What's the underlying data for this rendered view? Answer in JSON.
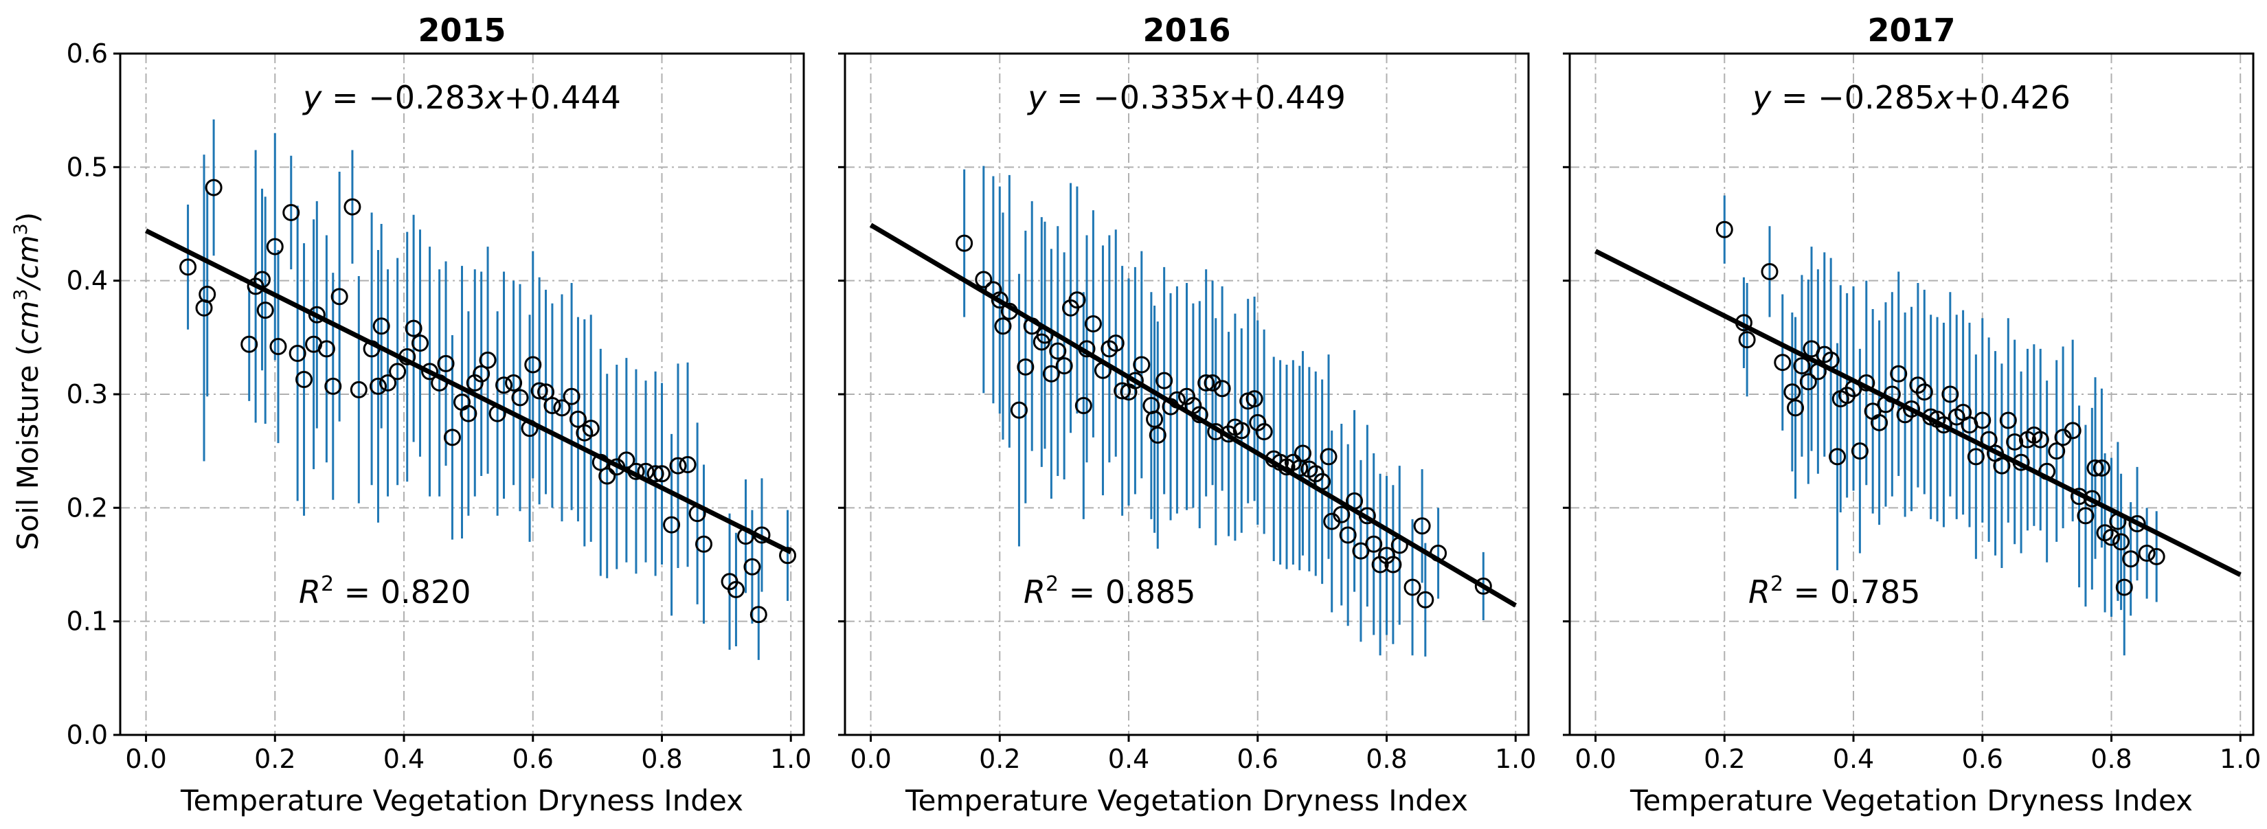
{
  "figure": {
    "ylabel": "Soil Moisture",
    "ylabel_unit_prefix": "(",
    "ylabel_unit_cm": "cm",
    "ylabel_unit_exp": "3",
    "ylabel_unit_slash": "/",
    "ylabel_unit_suffix": ")"
  },
  "colors": {
    "errorbar": "#1f77b4",
    "marker_edge": "#000000",
    "fit_line": "#000000",
    "grid": "#b0b0b0",
    "axes": "#000000"
  },
  "chart_data": [
    {
      "type": "scatter",
      "title": "2015",
      "xlabel": "Temperature Vegetation Dryness Index",
      "xlim": [
        -0.04,
        1.02
      ],
      "ylim": [
        0.0,
        0.6
      ],
      "xticks": [
        "0.0",
        "0.2",
        "0.4",
        "0.6",
        "0.8",
        "1.0"
      ],
      "yticks": [
        "0.0",
        "0.1",
        "0.2",
        "0.3",
        "0.4",
        "0.5",
        "0.6"
      ],
      "show_yticks": true,
      "grid": true,
      "equation": {
        "lhs": "y",
        "eq": " = −",
        "slope": "0.283",
        "var": "x",
        "intercept": "+0.444"
      },
      "r2": {
        "r": "R",
        "exp": "2",
        "eq": " = 0.820"
      },
      "fit": {
        "slope": -0.283,
        "intercept": 0.444,
        "x_range": [
          0.0,
          1.0
        ]
      },
      "points": [
        [
          0.065,
          0.412,
          0.055
        ],
        [
          0.09,
          0.376,
          0.135
        ],
        [
          0.095,
          0.388,
          0.09
        ],
        [
          0.105,
          0.482,
          0.06
        ],
        [
          0.16,
          0.344,
          0.05
        ],
        [
          0.17,
          0.395,
          0.12
        ],
        [
          0.18,
          0.401,
          0.08
        ],
        [
          0.185,
          0.374,
          0.1
        ],
        [
          0.2,
          0.43,
          0.1
        ],
        [
          0.205,
          0.342,
          0.085
        ],
        [
          0.225,
          0.46,
          0.05
        ],
        [
          0.235,
          0.336,
          0.13
        ],
        [
          0.245,
          0.313,
          0.12
        ],
        [
          0.26,
          0.344,
          0.11
        ],
        [
          0.265,
          0.37,
          0.1
        ],
        [
          0.28,
          0.34,
          0.1
        ],
        [
          0.29,
          0.307,
          0.1
        ],
        [
          0.3,
          0.386,
          0.11
        ],
        [
          0.32,
          0.465,
          0.05
        ],
        [
          0.33,
          0.304,
          0.1
        ],
        [
          0.35,
          0.34,
          0.12
        ],
        [
          0.36,
          0.307,
          0.12
        ],
        [
          0.365,
          0.36,
          0.09
        ],
        [
          0.375,
          0.31,
          0.1
        ],
        [
          0.39,
          0.32,
          0.1
        ],
        [
          0.405,
          0.333,
          0.11
        ],
        [
          0.415,
          0.358,
          0.1
        ],
        [
          0.425,
          0.345,
          0.1
        ],
        [
          0.44,
          0.32,
          0.11
        ],
        [
          0.455,
          0.31,
          0.1
        ],
        [
          0.465,
          0.327,
          0.09
        ],
        [
          0.475,
          0.262,
          0.09
        ],
        [
          0.49,
          0.293,
          0.12
        ],
        [
          0.5,
          0.283,
          0.09
        ],
        [
          0.51,
          0.31,
          0.1
        ],
        [
          0.52,
          0.318,
          0.09
        ],
        [
          0.53,
          0.33,
          0.1
        ],
        [
          0.545,
          0.283,
          0.09
        ],
        [
          0.555,
          0.308,
          0.1
        ],
        [
          0.57,
          0.31,
          0.09
        ],
        [
          0.58,
          0.297,
          0.1
        ],
        [
          0.595,
          0.27,
          0.1
        ],
        [
          0.6,
          0.326,
          0.1
        ],
        [
          0.61,
          0.303,
          0.1
        ],
        [
          0.62,
          0.302,
          0.09
        ],
        [
          0.63,
          0.29,
          0.09
        ],
        [
          0.645,
          0.288,
          0.1
        ],
        [
          0.66,
          0.298,
          0.1
        ],
        [
          0.67,
          0.278,
          0.09
        ],
        [
          0.68,
          0.266,
          0.1
        ],
        [
          0.69,
          0.27,
          0.1
        ],
        [
          0.705,
          0.24,
          0.1
        ],
        [
          0.715,
          0.228,
          0.09
        ],
        [
          0.73,
          0.236,
          0.09
        ],
        [
          0.745,
          0.242,
          0.09
        ],
        [
          0.76,
          0.232,
          0.09
        ],
        [
          0.775,
          0.232,
          0.08
        ],
        [
          0.79,
          0.23,
          0.09
        ],
        [
          0.8,
          0.23,
          0.08
        ],
        [
          0.815,
          0.185,
          0.08
        ],
        [
          0.825,
          0.237,
          0.09
        ],
        [
          0.84,
          0.238,
          0.09
        ],
        [
          0.855,
          0.195,
          0.08
        ],
        [
          0.865,
          0.168,
          0.07
        ],
        [
          0.905,
          0.135,
          0.06
        ],
        [
          0.915,
          0.128,
          0.05
        ],
        [
          0.93,
          0.175,
          0.05
        ],
        [
          0.94,
          0.148,
          0.05
        ],
        [
          0.95,
          0.106,
          0.04
        ],
        [
          0.955,
          0.176,
          0.05
        ],
        [
          0.995,
          0.158,
          0.04
        ]
      ]
    },
    {
      "type": "scatter",
      "title": "2016",
      "xlabel": "Temperature Vegetation Dryness Index",
      "xlim": [
        -0.04,
        1.02
      ],
      "ylim": [
        0.0,
        0.6
      ],
      "xticks": [
        "0.0",
        "0.2",
        "0.4",
        "0.6",
        "0.8",
        "1.0"
      ],
      "yticks": [
        "0.0",
        "0.1",
        "0.2",
        "0.3",
        "0.4",
        "0.5",
        "0.6"
      ],
      "show_yticks": false,
      "grid": true,
      "equation": {
        "lhs": "y",
        "eq": " = −",
        "slope": "0.335",
        "var": "x",
        "intercept": "+0.449"
      },
      "r2": {
        "r": "R",
        "exp": "2",
        "eq": " = 0.885"
      },
      "fit": {
        "slope": -0.335,
        "intercept": 0.449,
        "x_range": [
          0.0,
          1.0
        ]
      },
      "points": [
        [
          0.145,
          0.433,
          0.065
        ],
        [
          0.175,
          0.401,
          0.1
        ],
        [
          0.19,
          0.392,
          0.1
        ],
        [
          0.2,
          0.383,
          0.1
        ],
        [
          0.205,
          0.36,
          0.1
        ],
        [
          0.215,
          0.373,
          0.12
        ],
        [
          0.23,
          0.286,
          0.12
        ],
        [
          0.24,
          0.324,
          0.12
        ],
        [
          0.25,
          0.36,
          0.11
        ],
        [
          0.265,
          0.346,
          0.11
        ],
        [
          0.27,
          0.352,
          0.1
        ],
        [
          0.28,
          0.318,
          0.11
        ],
        [
          0.29,
          0.338,
          0.11
        ],
        [
          0.3,
          0.325,
          0.1
        ],
        [
          0.31,
          0.376,
          0.11
        ],
        [
          0.32,
          0.383,
          0.1
        ],
        [
          0.33,
          0.29,
          0.1
        ],
        [
          0.335,
          0.34,
          0.1
        ],
        [
          0.345,
          0.362,
          0.1
        ],
        [
          0.36,
          0.321,
          0.11
        ],
        [
          0.37,
          0.34,
          0.1
        ],
        [
          0.38,
          0.345,
          0.1
        ],
        [
          0.39,
          0.303,
          0.11
        ],
        [
          0.4,
          0.302,
          0.1
        ],
        [
          0.41,
          0.312,
          0.1
        ],
        [
          0.42,
          0.326,
          0.1
        ],
        [
          0.435,
          0.29,
          0.1
        ],
        [
          0.44,
          0.278,
          0.1
        ],
        [
          0.445,
          0.264,
          0.1
        ],
        [
          0.455,
          0.312,
          0.1
        ],
        [
          0.465,
          0.289,
          0.1
        ],
        [
          0.475,
          0.295,
          0.1
        ],
        [
          0.49,
          0.298,
          0.1
        ],
        [
          0.5,
          0.29,
          0.09
        ],
        [
          0.51,
          0.282,
          0.1
        ],
        [
          0.52,
          0.31,
          0.1
        ],
        [
          0.53,
          0.31,
          0.09
        ],
        [
          0.535,
          0.267,
          0.1
        ],
        [
          0.545,
          0.305,
          0.09
        ],
        [
          0.555,
          0.265,
          0.09
        ],
        [
          0.565,
          0.271,
          0.1
        ],
        [
          0.575,
          0.268,
          0.09
        ],
        [
          0.585,
          0.294,
          0.09
        ],
        [
          0.595,
          0.296,
          0.09
        ],
        [
          0.6,
          0.275,
          0.09
        ],
        [
          0.61,
          0.267,
          0.09
        ],
        [
          0.625,
          0.243,
          0.09
        ],
        [
          0.635,
          0.24,
          0.09
        ],
        [
          0.645,
          0.236,
          0.09
        ],
        [
          0.655,
          0.24,
          0.09
        ],
        [
          0.665,
          0.235,
          0.09
        ],
        [
          0.67,
          0.248,
          0.09
        ],
        [
          0.68,
          0.234,
          0.09
        ],
        [
          0.69,
          0.23,
          0.09
        ],
        [
          0.7,
          0.223,
          0.09
        ],
        [
          0.71,
          0.245,
          0.09
        ],
        [
          0.715,
          0.188,
          0.08
        ],
        [
          0.73,
          0.194,
          0.08
        ],
        [
          0.74,
          0.176,
          0.08
        ],
        [
          0.75,
          0.206,
          0.08
        ],
        [
          0.76,
          0.162,
          0.08
        ],
        [
          0.77,
          0.193,
          0.08
        ],
        [
          0.78,
          0.168,
          0.08
        ],
        [
          0.79,
          0.15,
          0.08
        ],
        [
          0.8,
          0.158,
          0.07
        ],
        [
          0.81,
          0.15,
          0.07
        ],
        [
          0.82,
          0.167,
          0.07
        ],
        [
          0.84,
          0.13,
          0.06
        ],
        [
          0.855,
          0.184,
          0.05
        ],
        [
          0.86,
          0.119,
          0.05
        ],
        [
          0.88,
          0.16,
          0.04
        ],
        [
          0.95,
          0.131,
          0.03
        ]
      ]
    },
    {
      "type": "scatter",
      "title": "2017",
      "xlabel": "Temperature Vegetation Dryness Index",
      "xlim": [
        -0.04,
        1.02
      ],
      "ylim": [
        0.0,
        0.6
      ],
      "xticks": [
        "0.0",
        "0.2",
        "0.4",
        "0.6",
        "0.8",
        "1.0"
      ],
      "yticks": [
        "0.0",
        "0.1",
        "0.2",
        "0.3",
        "0.4",
        "0.5",
        "0.6"
      ],
      "show_yticks": false,
      "grid": true,
      "equation": {
        "lhs": "y",
        "eq": " = −",
        "slope": "0.285",
        "var": "x",
        "intercept": "+0.426"
      },
      "r2": {
        "r": "R",
        "exp": "2",
        "eq": " = 0.785"
      },
      "fit": {
        "slope": -0.285,
        "intercept": 0.426,
        "x_range": [
          0.0,
          1.0
        ]
      },
      "points": [
        [
          0.2,
          0.445,
          0.03
        ],
        [
          0.23,
          0.363,
          0.04
        ],
        [
          0.235,
          0.348,
          0.05
        ],
        [
          0.27,
          0.408,
          0.04
        ],
        [
          0.29,
          0.328,
          0.06
        ],
        [
          0.305,
          0.302,
          0.07
        ],
        [
          0.31,
          0.288,
          0.08
        ],
        [
          0.32,
          0.325,
          0.08
        ],
        [
          0.33,
          0.311,
          0.09
        ],
        [
          0.335,
          0.34,
          0.09
        ],
        [
          0.345,
          0.32,
          0.09
        ],
        [
          0.355,
          0.335,
          0.09
        ],
        [
          0.365,
          0.33,
          0.09
        ],
        [
          0.375,
          0.245,
          0.1
        ],
        [
          0.38,
          0.296,
          0.1
        ],
        [
          0.39,
          0.299,
          0.09
        ],
        [
          0.4,
          0.305,
          0.09
        ],
        [
          0.41,
          0.25,
          0.09
        ],
        [
          0.42,
          0.31,
          0.09
        ],
        [
          0.43,
          0.285,
          0.09
        ],
        [
          0.44,
          0.275,
          0.09
        ],
        [
          0.45,
          0.291,
          0.09
        ],
        [
          0.46,
          0.3,
          0.09
        ],
        [
          0.47,
          0.318,
          0.09
        ],
        [
          0.48,
          0.282,
          0.09
        ],
        [
          0.49,
          0.287,
          0.09
        ],
        [
          0.5,
          0.308,
          0.09
        ],
        [
          0.51,
          0.302,
          0.09
        ],
        [
          0.52,
          0.28,
          0.09
        ],
        [
          0.53,
          0.278,
          0.09
        ],
        [
          0.54,
          0.273,
          0.09
        ],
        [
          0.55,
          0.3,
          0.09
        ],
        [
          0.56,
          0.28,
          0.09
        ],
        [
          0.57,
          0.284,
          0.09
        ],
        [
          0.58,
          0.273,
          0.09
        ],
        [
          0.59,
          0.245,
          0.09
        ],
        [
          0.6,
          0.277,
          0.09
        ],
        [
          0.61,
          0.26,
          0.09
        ],
        [
          0.62,
          0.248,
          0.09
        ],
        [
          0.63,
          0.237,
          0.09
        ],
        [
          0.64,
          0.277,
          0.09
        ],
        [
          0.65,
          0.258,
          0.09
        ],
        [
          0.66,
          0.24,
          0.08
        ],
        [
          0.67,
          0.26,
          0.08
        ],
        [
          0.68,
          0.264,
          0.08
        ],
        [
          0.69,
          0.26,
          0.08
        ],
        [
          0.7,
          0.232,
          0.08
        ],
        [
          0.715,
          0.25,
          0.08
        ],
        [
          0.725,
          0.262,
          0.08
        ],
        [
          0.74,
          0.268,
          0.08
        ],
        [
          0.75,
          0.21,
          0.08
        ],
        [
          0.76,
          0.193,
          0.08
        ],
        [
          0.77,
          0.208,
          0.08
        ],
        [
          0.775,
          0.235,
          0.08
        ],
        [
          0.785,
          0.235,
          0.07
        ],
        [
          0.79,
          0.178,
          0.07
        ],
        [
          0.8,
          0.174,
          0.07
        ],
        [
          0.81,
          0.188,
          0.07
        ],
        [
          0.815,
          0.17,
          0.06
        ],
        [
          0.82,
          0.13,
          0.06
        ],
        [
          0.83,
          0.155,
          0.05
        ],
        [
          0.84,
          0.186,
          0.05
        ],
        [
          0.855,
          0.16,
          0.04
        ],
        [
          0.87,
          0.157,
          0.04
        ]
      ]
    }
  ]
}
